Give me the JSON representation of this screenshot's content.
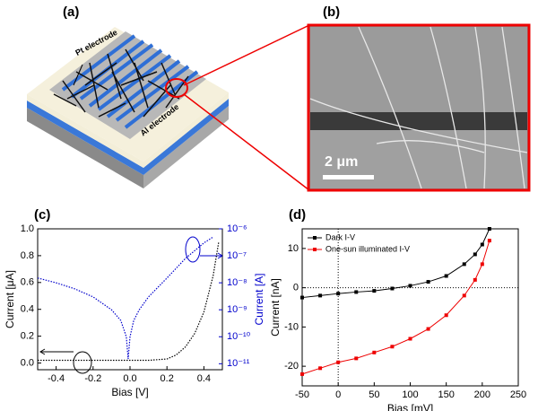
{
  "panel_labels": [
    "(a)",
    "(b)",
    "(c)",
    "(d)"
  ],
  "panel_a": {
    "labels": [
      "Pt electrode",
      "Al electrode"
    ]
  },
  "panel_b": {
    "scale_bar": "2 μm"
  },
  "chart_data": [
    {
      "type": "line",
      "xlabel": "Bias [V]",
      "ylabel": "Current [μA]",
      "y2label": "Current [A]",
      "xlim": [
        -0.5,
        0.5
      ],
      "xticks": [
        -0.4,
        -0.2,
        {
          "value": 0,
          "label": "0.0"
        },
        0.2,
        0.4
      ],
      "ylim": [
        -0.05,
        1.0
      ],
      "yticks": [
        {
          "value": 0,
          "label": "0.0"
        },
        0.2,
        0.4,
        0.6,
        0.8,
        {
          "value": 1,
          "label": "1.0"
        }
      ],
      "y2lim": [
        6e-12,
        1e-06
      ],
      "y2log": true,
      "y2ticks": [
        {
          "value": 1e-11,
          "label": "10⁻¹¹"
        },
        {
          "value": 1e-10,
          "label": "10⁻¹⁰"
        },
        {
          "value": 1e-09,
          "label": "10⁻⁹"
        },
        {
          "value": 1e-08,
          "label": "10⁻⁸"
        },
        {
          "value": 1e-07,
          "label": "10⁻⁷"
        },
        {
          "value": 1e-06,
          "label": "10⁻⁶"
        }
      ],
      "series": [
        {
          "color": "#000000",
          "x": [
            -0.5,
            -0.4,
            -0.3,
            -0.2,
            -0.1,
            0,
            0.1,
            0.2,
            0.25,
            0.3,
            0.35,
            0.4,
            0.45,
            0.48
          ],
          "values": [
            0.02,
            0.02,
            0.02,
            0.02,
            0.02,
            0.02,
            0.02,
            0.03,
            0.06,
            0.12,
            0.22,
            0.38,
            0.65,
            0.9
          ]
        },
        {
          "color": "#0000cc",
          "axis": "y2",
          "x": [
            -0.5,
            -0.4,
            -0.3,
            -0.2,
            -0.1,
            -0.05,
            -0.02,
            -0.01,
            0,
            0.02,
            0.05,
            0.1,
            0.2,
            0.3,
            0.4,
            0.45
          ],
          "values": [
            1.5e-08,
            1e-08,
            6e-09,
            3e-09,
            1e-09,
            4e-10,
            1e-10,
            1.5e-11,
            1e-10,
            4e-10,
            1e-09,
            3e-09,
            1.5e-08,
            8e-08,
            3e-07,
            5e-07
          ]
        }
      ]
    },
    {
      "type": "line",
      "xlabel": "Bias [mV]",
      "ylabel": "Current [nA]",
      "xlim": [
        -50,
        250
      ],
      "xticks": [
        -50,
        0,
        50,
        100,
        150,
        200,
        250
      ],
      "ylim": [
        -25,
        15
      ],
      "yticks": [
        -20,
        -10,
        0,
        10
      ],
      "legend": "upper left",
      "series": [
        {
          "name": "Dark I-V",
          "color": "#000000",
          "x": [
            -50,
            -25,
            0,
            25,
            50,
            75,
            100,
            125,
            150,
            175,
            190,
            200,
            210
          ],
          "values": [
            -2.5,
            -2,
            -1.5,
            -1.1,
            -0.8,
            -0.2,
            0.5,
            1.5,
            3,
            6,
            8.5,
            11,
            15
          ]
        },
        {
          "name": "One-sun illuminated I-V",
          "color": "#ee0000",
          "x": [
            -50,
            -25,
            0,
            25,
            50,
            75,
            100,
            125,
            150,
            175,
            190,
            200,
            210
          ],
          "values": [
            -22,
            -20.5,
            -19,
            -18,
            -16.5,
            -15,
            -13,
            -10.5,
            -7,
            -2,
            2,
            6,
            12
          ]
        }
      ]
    }
  ]
}
